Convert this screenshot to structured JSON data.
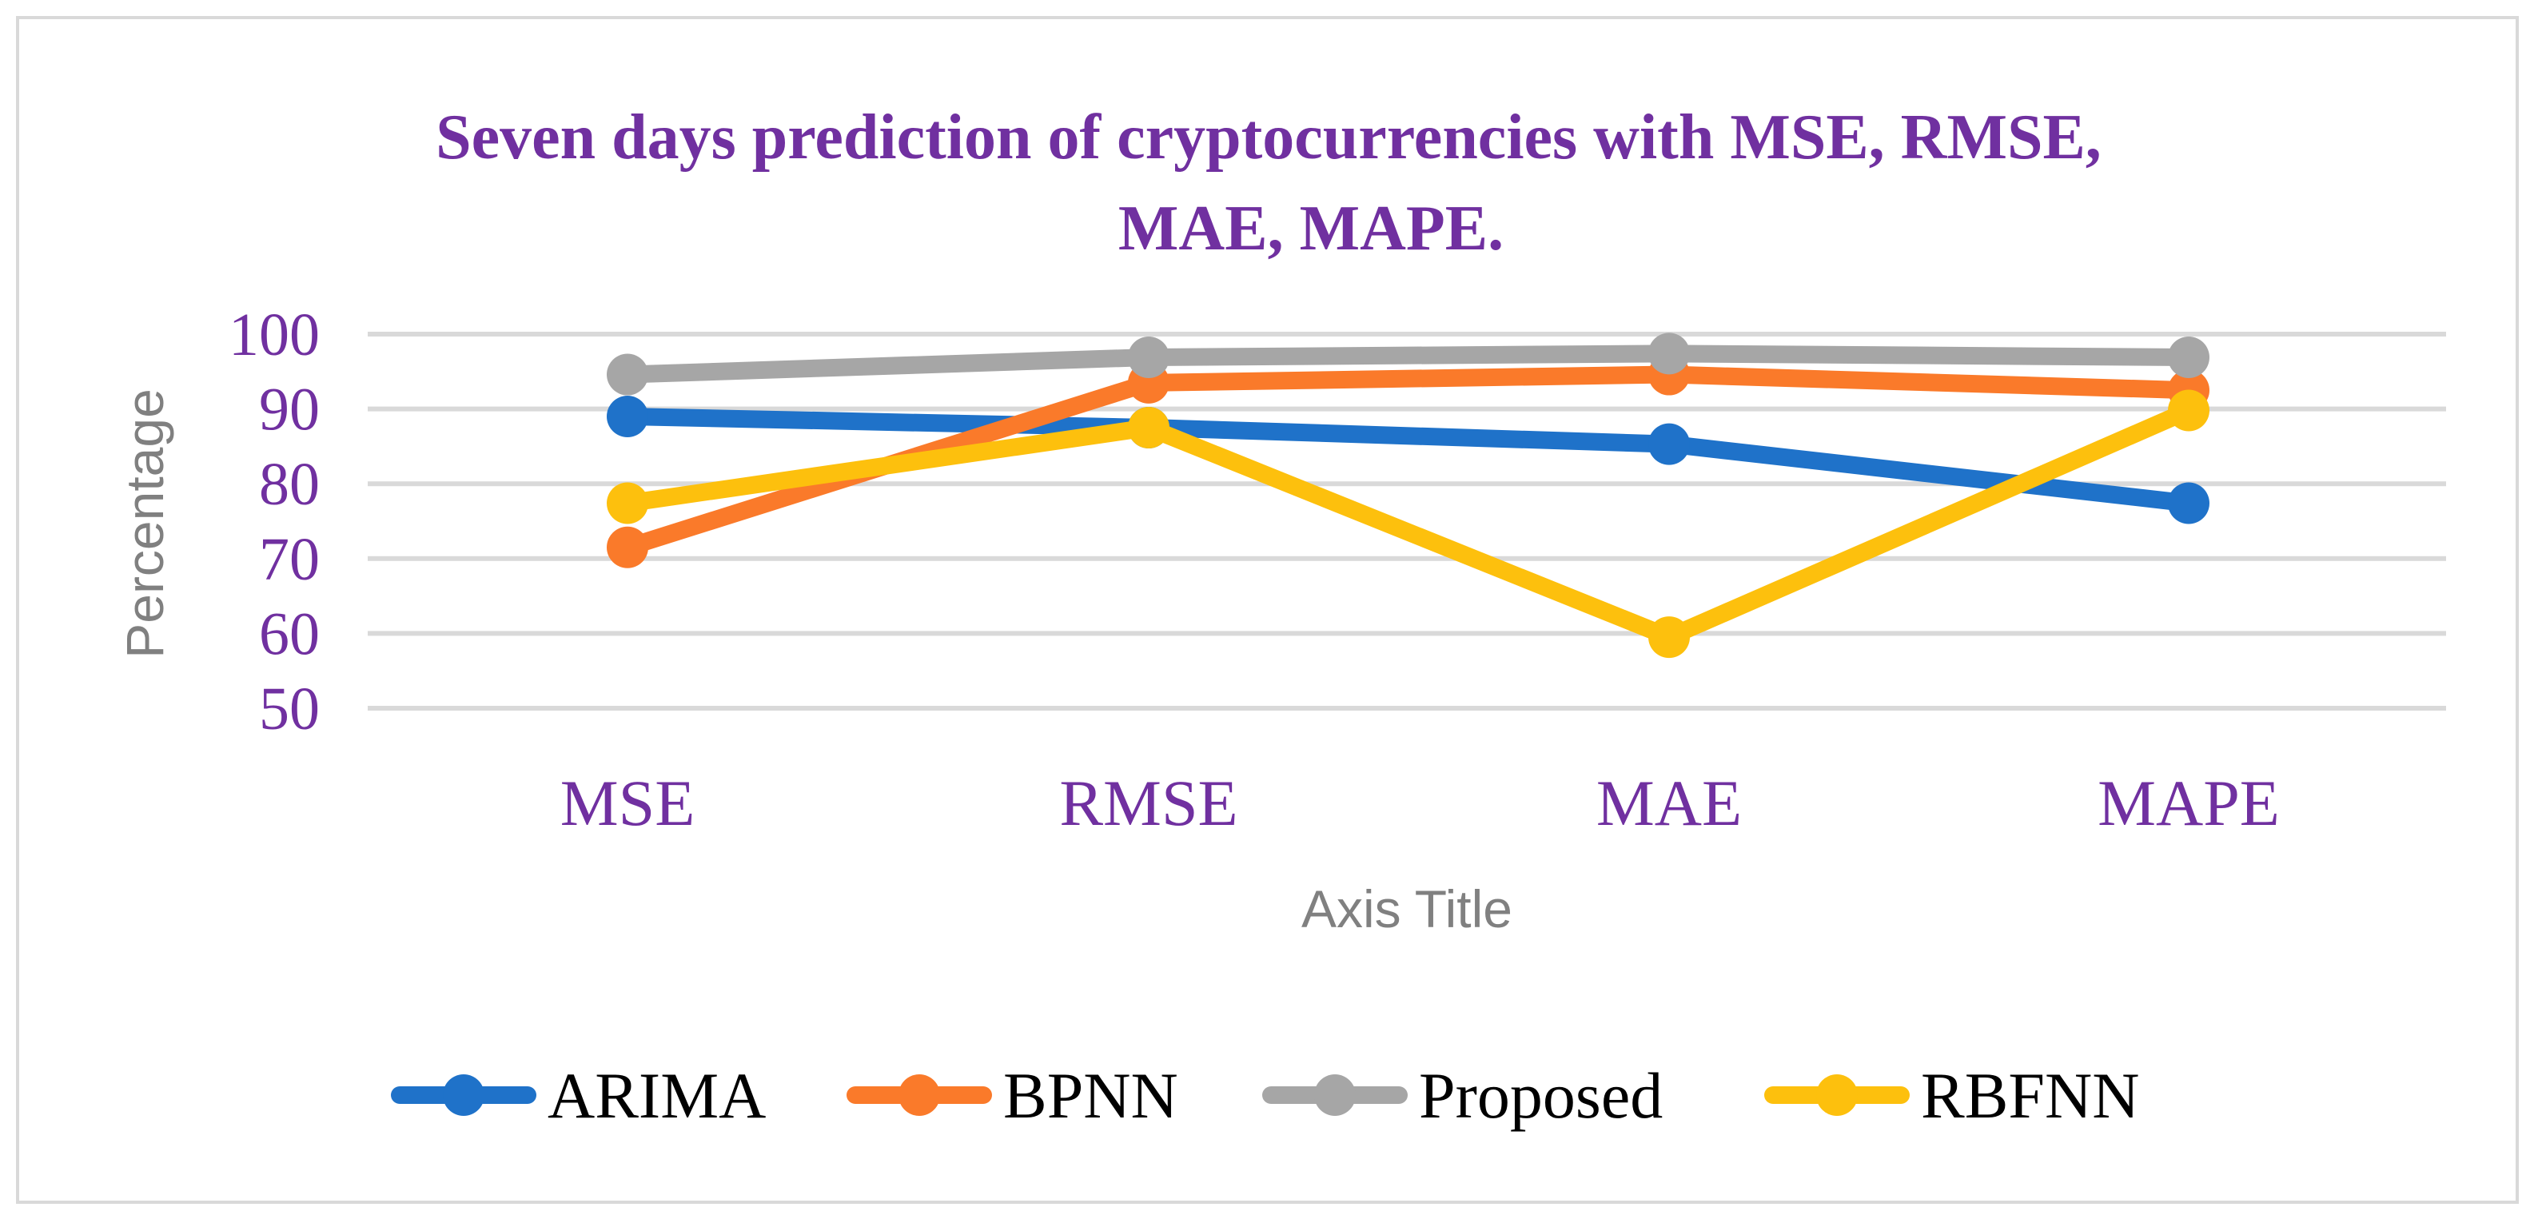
{
  "chart_data": {
    "type": "line",
    "title_lines": [
      "Seven days prediction of cryptocurrencies with MSE, RMSE,",
      "MAE, MAPE."
    ],
    "categories": [
      "MSE",
      "RMSE",
      "MAE",
      "MAPE"
    ],
    "xlabel": "Axis Title",
    "ylabel": "Percentage",
    "ylim": [
      50,
      100
    ],
    "yticks": [
      50,
      60,
      70,
      80,
      90,
      100
    ],
    "grid": true,
    "legend_position": "bottom",
    "series": [
      {
        "name": "ARIMA",
        "color": "#1f72c9",
        "values": [
          89,
          87.5,
          85.3,
          77.4
        ]
      },
      {
        "name": "BPNN",
        "color": "#fa7a2a",
        "values": [
          71.5,
          93.5,
          94.6,
          92.5
        ]
      },
      {
        "name": "Proposed",
        "color": "#a6a6a6",
        "values": [
          94.6,
          96.9,
          97.4,
          96.9
        ]
      },
      {
        "name": "RBFNN",
        "color": "#fdc00d",
        "values": [
          77.4,
          87.5,
          59.5,
          89.8
        ]
      }
    ]
  }
}
